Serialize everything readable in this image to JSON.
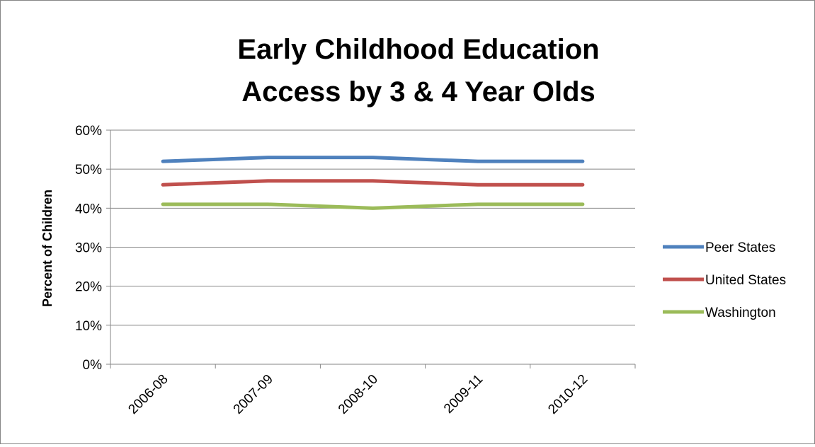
{
  "chart_data": {
    "type": "line",
    "title_lines": [
      "Early Childhood Education",
      "Access by 3 & 4 Year Olds"
    ],
    "ylabel": "Percent of Children",
    "xlabel": "",
    "categories": [
      "2006-08",
      "2007-09",
      "2008-10",
      "2009-11",
      "2010-12"
    ],
    "ylim": [
      0,
      60
    ],
    "yticks": [
      "0%",
      "10%",
      "20%",
      "30%",
      "40%",
      "50%",
      "60%"
    ],
    "grid": true,
    "legend_position": "right",
    "series": [
      {
        "name": "Peer States",
        "color": "#4F81BD",
        "values": [
          52,
          53,
          53,
          52,
          52
        ]
      },
      {
        "name": "United States",
        "color": "#C0504D",
        "values": [
          46,
          47,
          47,
          46,
          46
        ]
      },
      {
        "name": "Washington",
        "color": "#9BBB59",
        "values": [
          41,
          41,
          40,
          41,
          41
        ]
      }
    ]
  }
}
